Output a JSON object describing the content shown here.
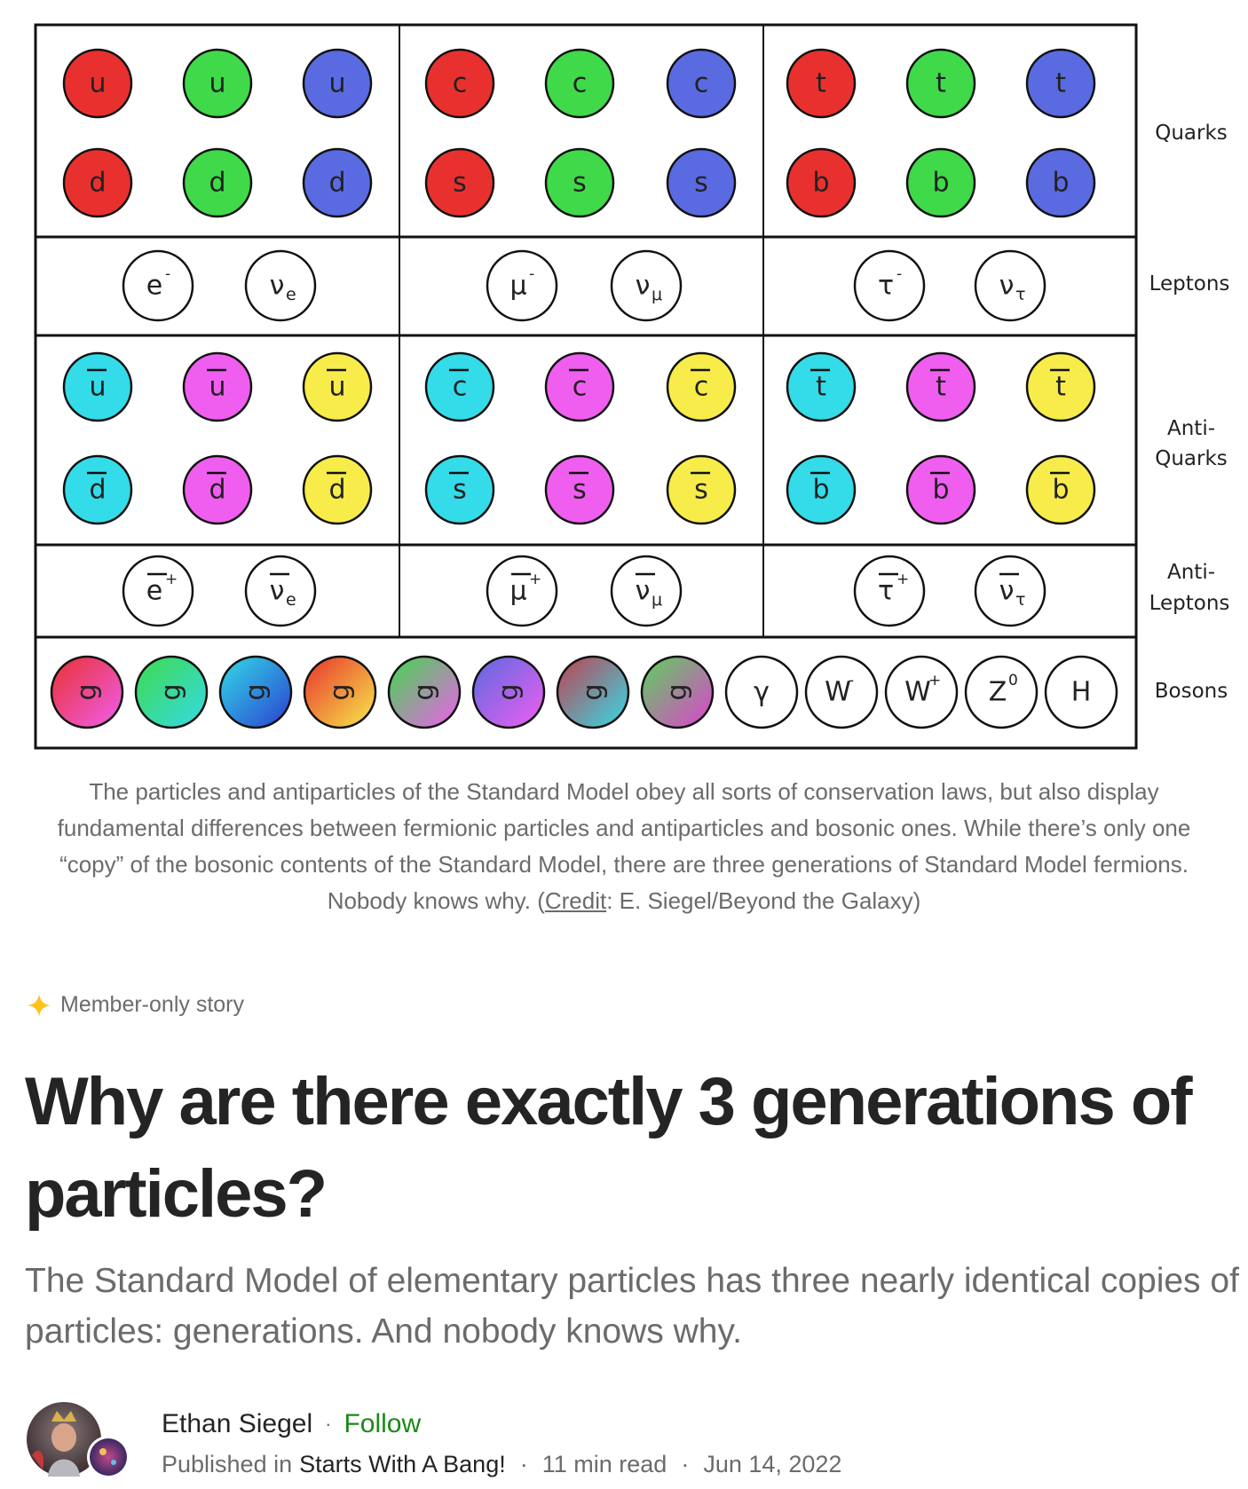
{
  "figure": {
    "row_labels": {
      "quarks": "Quarks",
      "leptons": "Leptons",
      "antiquarks": [
        "Anti-",
        "Quarks"
      ],
      "antileptons": [
        "Anti-",
        "Leptons"
      ],
      "bosons": "Bosons"
    },
    "quarks": [
      [
        {
          "s": "u",
          "c": "#e8312e"
        },
        {
          "s": "u",
          "c": "#3fd94a"
        },
        {
          "s": "u",
          "c": "#5a6ae0"
        },
        {
          "s": "c",
          "c": "#e8312e"
        },
        {
          "s": "c",
          "c": "#3fd94a"
        },
        {
          "s": "c",
          "c": "#5a6ae0"
        },
        {
          "s": "t",
          "c": "#e8312e"
        },
        {
          "s": "t",
          "c": "#3fd94a"
        },
        {
          "s": "t",
          "c": "#5a6ae0"
        }
      ],
      [
        {
          "s": "d",
          "c": "#e8312e"
        },
        {
          "s": "d",
          "c": "#3fd94a"
        },
        {
          "s": "d",
          "c": "#5a6ae0"
        },
        {
          "s": "s",
          "c": "#e8312e"
        },
        {
          "s": "s",
          "c": "#3fd94a"
        },
        {
          "s": "s",
          "c": "#5a6ae0"
        },
        {
          "s": "b",
          "c": "#e8312e"
        },
        {
          "s": "b",
          "c": "#3fd94a"
        },
        {
          "s": "b",
          "c": "#5a6ae0"
        }
      ]
    ],
    "antiquarks": [
      [
        {
          "s": "u",
          "c": "#34dbe8"
        },
        {
          "s": "u",
          "c": "#f05ef0"
        },
        {
          "s": "u",
          "c": "#f7ec4a"
        },
        {
          "s": "c",
          "c": "#34dbe8"
        },
        {
          "s": "c",
          "c": "#f05ef0"
        },
        {
          "s": "c",
          "c": "#f7ec4a"
        },
        {
          "s": "t",
          "c": "#34dbe8"
        },
        {
          "s": "t",
          "c": "#f05ef0"
        },
        {
          "s": "t",
          "c": "#f7ec4a"
        }
      ],
      [
        {
          "s": "d",
          "c": "#34dbe8"
        },
        {
          "s": "d",
          "c": "#f05ef0"
        },
        {
          "s": "d",
          "c": "#f7ec4a"
        },
        {
          "s": "s",
          "c": "#34dbe8"
        },
        {
          "s": "s",
          "c": "#f05ef0"
        },
        {
          "s": "s",
          "c": "#f7ec4a"
        },
        {
          "s": "b",
          "c": "#34dbe8"
        },
        {
          "s": "b",
          "c": "#f05ef0"
        },
        {
          "s": "b",
          "c": "#f7ec4a"
        }
      ]
    ],
    "leptons": [
      {
        "s": "e",
        "sup": "-"
      },
      {
        "s": "ν",
        "sub": "e"
      },
      {
        "s": "μ",
        "sup": "-"
      },
      {
        "s": "ν",
        "sub": "μ"
      },
      {
        "s": "τ",
        "sup": "-"
      },
      {
        "s": "ν",
        "sub": "τ"
      }
    ],
    "antileptons": [
      {
        "s": "e",
        "sup": "+"
      },
      {
        "s": "ν",
        "sub": "e"
      },
      {
        "s": "μ",
        "sup": "+"
      },
      {
        "s": "ν",
        "sub": "μ"
      },
      {
        "s": "τ",
        "sup": "+"
      },
      {
        "s": "ν",
        "sub": "τ"
      }
    ],
    "gluons": [
      {
        "s": "g",
        "a": "#e8312e",
        "b": "#f05ef0"
      },
      {
        "s": "g",
        "a": "#3fd94a",
        "b": "#34dbe8"
      },
      {
        "s": "g",
        "a": "#34dbe8",
        "b": "#2a3fd0"
      },
      {
        "s": "g",
        "a": "#e8312e",
        "b": "#f7ec4a"
      },
      {
        "s": "g",
        "a": "#3fd94a",
        "b": "#f05ef0"
      },
      {
        "s": "g",
        "a": "#5a6ae0",
        "b": "#f05ef0"
      },
      {
        "s": "g",
        "a": "#c04050",
        "b": "#34dbe8"
      },
      {
        "s": "g",
        "a": "#5ad35a",
        "b": "#e040d0"
      }
    ],
    "bosons": [
      {
        "s": "γ"
      },
      {
        "s": "W",
        "sup": "-"
      },
      {
        "s": "W",
        "sup": "+"
      },
      {
        "s": "Z",
        "sup": "0"
      },
      {
        "s": "H"
      }
    ]
  },
  "caption": {
    "text": "The particles and antiparticles of the Standard Model obey all sorts of conservation laws, but also display fundamental differences between fermionic particles and antiparticles and bosonic ones. While there’s only one “copy” of the bosonic contents of the Standard Model, there are three generations of Standard Model fermions. Nobody knows why. (",
    "credit_link": "Credit",
    "credit_rest": ": E. Siegel/Beyond the Galaxy)"
  },
  "member_label": "Member-only story",
  "title": "Why are there exactly 3 generations of particles?",
  "subtitle": "The Standard Model of elementary particles has three nearly identical copies of particles: generations. And nobody knows why.",
  "byline": {
    "author": "Ethan Siegel",
    "dot": "·",
    "follow": "Follow",
    "published_in": "Published in",
    "publication": "Starts With A Bang!",
    "sep": "·",
    "read_time": "11 min read",
    "date": "Jun 14, 2022"
  },
  "colors": {
    "accent_star": "#ffc017",
    "follow_green": "#1a8917",
    "text_dark": "#242424",
    "text_gray": "#6b6b6b"
  },
  "icons": {
    "member_star": "sparkle-star-icon"
  }
}
